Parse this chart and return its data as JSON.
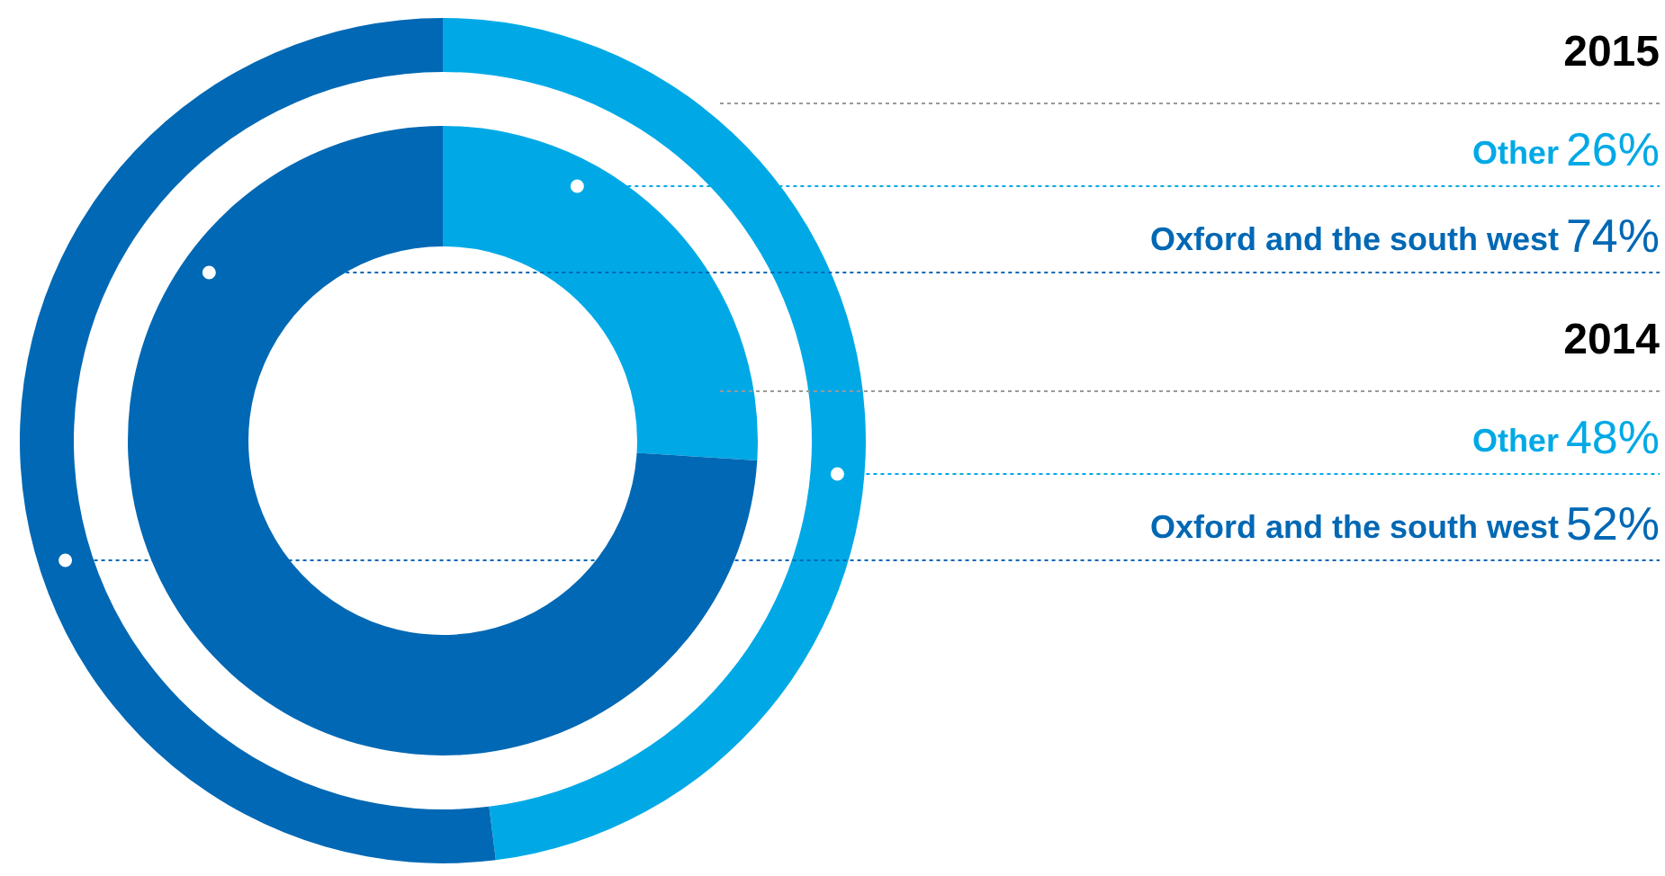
{
  "chart_data": {
    "type": "donut",
    "categories": [
      "Other",
      "Oxford and the south west"
    ],
    "colors": [
      "#00a9e6",
      "#0068b4"
    ],
    "annotations": [
      "2015",
      "2014"
    ],
    "series": [
      {
        "values": [
          26,
          74
        ],
        "value_labels": [
          "26%",
          "74%"
        ]
      },
      {
        "values": [
          48,
          52
        ],
        "value_labels": [
          "48%",
          "52%"
        ]
      }
    ]
  }
}
